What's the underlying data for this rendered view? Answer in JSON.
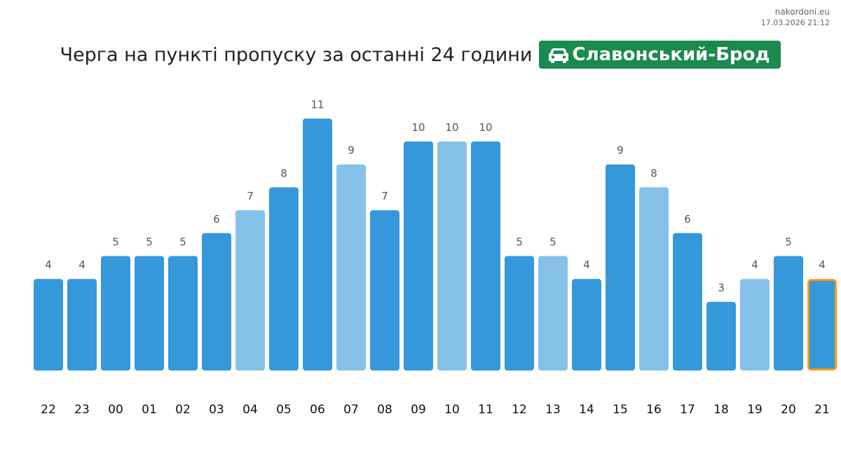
{
  "source": {
    "site": "nakordoni.eu",
    "timestamp": "17.03.2026 21:12"
  },
  "header": {
    "title": "Черга на пункті пропуску за останні 24 години",
    "checkpoint": "Славонський-Брод",
    "checkpoint_icon": "car-icon",
    "badge_color": "#1a8a4e"
  },
  "chart_data": {
    "type": "bar",
    "title": "",
    "xlabel": "",
    "ylabel": "",
    "ylim": [
      0,
      11
    ],
    "grid": false,
    "legend": false,
    "categories": [
      "22",
      "23",
      "00",
      "01",
      "02",
      "03",
      "04",
      "05",
      "06",
      "07",
      "08",
      "09",
      "10",
      "11",
      "12",
      "13",
      "14",
      "15",
      "16",
      "17",
      "18",
      "19",
      "20",
      "21"
    ],
    "values": [
      4,
      4,
      5,
      5,
      5,
      6,
      7,
      8,
      11,
      9,
      7,
      10,
      10,
      10,
      5,
      5,
      4,
      9,
      8,
      6,
      3,
      4,
      5,
      4
    ],
    "bar_shade": [
      "dark",
      "dark",
      "dark",
      "dark",
      "dark",
      "dark",
      "light",
      "dark",
      "dark",
      "light",
      "dark",
      "dark",
      "light",
      "dark",
      "dark",
      "light",
      "dark",
      "dark",
      "light",
      "dark",
      "dark",
      "light",
      "dark",
      "dark"
    ],
    "highlighted_category": "21",
    "colors": {
      "dark": "#3598db",
      "light": "#85c1e9",
      "highlight_border": "#f39c12"
    }
  }
}
